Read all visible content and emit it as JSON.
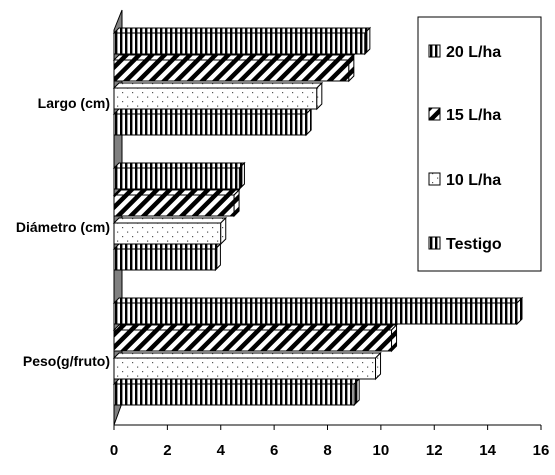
{
  "chart_data": {
    "type": "bar",
    "orientation": "horizontal",
    "style": "3d",
    "categories": [
      "Peso(g/fruto)",
      "Diámetro (cm)",
      "Largo (cm)"
    ],
    "series": [
      {
        "name": "Testigo",
        "values": [
          9.0,
          3.8,
          7.2
        ],
        "pattern": "vertical-stripes"
      },
      {
        "name": "10 L/ha",
        "values": [
          9.8,
          4.0,
          7.6
        ],
        "pattern": "dots"
      },
      {
        "name": "15 L/ha",
        "values": [
          10.4,
          4.5,
          8.8
        ],
        "pattern": "diagonal-stripes"
      },
      {
        "name": "20 L/ha",
        "values": [
          15.1,
          4.7,
          9.4
        ],
        "pattern": "vertical-stripes"
      }
    ],
    "xlim": [
      0,
      16
    ],
    "xticks": [
      "0",
      "2",
      "4",
      "6",
      "8",
      "10",
      "12",
      "14",
      "16"
    ],
    "legend": {
      "position": "right",
      "order": [
        "20 L/ha",
        "15 L/ha",
        "10 L/ha",
        "Testigo"
      ]
    },
    "colors": {
      "bar_stroke": "#000000",
      "wall": "#808080",
      "background": "#ffffff"
    }
  }
}
